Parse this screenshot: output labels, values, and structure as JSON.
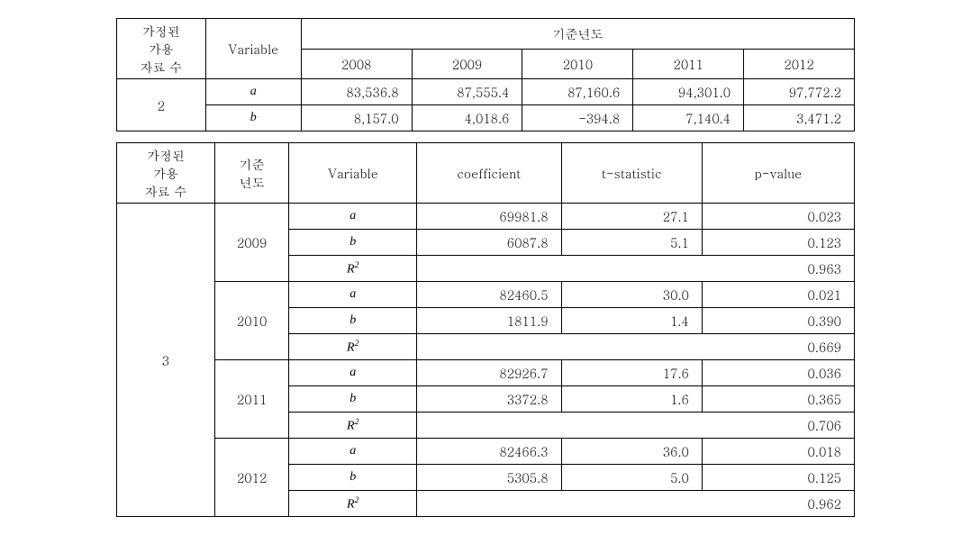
{
  "t1": {
    "hdr_assumed": "가정된\n가용\n자료 수",
    "hdr_variable": "Variable",
    "hdr_baseyear": "기준년도",
    "years": [
      "2008",
      "2009",
      "2010",
      "2011",
      "2012"
    ],
    "group_label": "2",
    "rows": [
      {
        "var": "a",
        "vals": [
          "83,536.8",
          "87,555.4",
          "87,160.6",
          "94,301.0",
          "97,772.2"
        ]
      },
      {
        "var": "b",
        "vals": [
          "8,157.0",
          "4,018.6",
          "-394.8",
          "7,140.4",
          "3,471.2"
        ]
      }
    ]
  },
  "t2": {
    "hdr_assumed": "가정된\n가용\n자료 수",
    "hdr_baseyear": "기준\n년도",
    "hdr_variable": "Variable",
    "hdr_coef": "coefficient",
    "hdr_tstat": "t-statistic",
    "hdr_pval": "p-value",
    "group_label": "3",
    "blocks": [
      {
        "year": "2009",
        "rows": [
          {
            "var": "a",
            "coef": "69981.8",
            "t": "27.1",
            "p": "0.023"
          },
          {
            "var": "b",
            "coef": "6087.8",
            "t": "5.1",
            "p": "0.123"
          }
        ],
        "r2_label": "R",
        "r2_val": "0.963"
      },
      {
        "year": "2010",
        "rows": [
          {
            "var": "a",
            "coef": "82460.5",
            "t": "30.0",
            "p": "0.021"
          },
          {
            "var": "b",
            "coef": "1811.9",
            "t": "1.4",
            "p": "0.390"
          }
        ],
        "r2_label": "R",
        "r2_val": "0.669"
      },
      {
        "year": "2011",
        "rows": [
          {
            "var": "a",
            "coef": "82926.7",
            "t": "17.6",
            "p": "0.036"
          },
          {
            "var": "b",
            "coef": "3372.8",
            "t": "1.6",
            "p": "0.365"
          }
        ],
        "r2_label": "R",
        "r2_val": "0.706"
      },
      {
        "year": "2012",
        "rows": [
          {
            "var": "a",
            "coef": "82466.3",
            "t": "36.0",
            "p": "0.018"
          },
          {
            "var": "b",
            "coef": "5305.8",
            "t": "5.0",
            "p": "0.125"
          }
        ],
        "r2_label": "R",
        "r2_val": "0.962"
      }
    ]
  }
}
